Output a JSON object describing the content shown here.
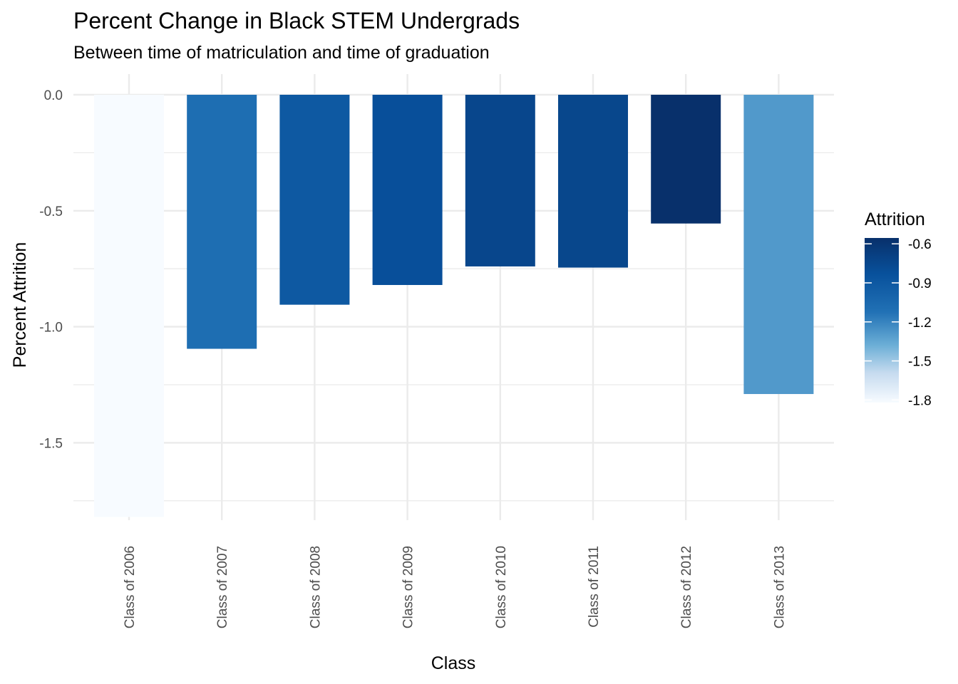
{
  "chart_data": {
    "type": "bar",
    "title": "Percent Change in Black STEM Undergrads",
    "subtitle": "Between time of matriculation and time of graduation",
    "xlabel": "Class",
    "ylabel": "Percent Attrition",
    "categories": [
      "Class of 2006",
      "Class of 2007",
      "Class of 2008",
      "Class of 2009",
      "Class of 2010",
      "Class of 2011",
      "Class of 2012",
      "Class of 2013"
    ],
    "values": [
      -1.82,
      -1.095,
      -0.905,
      -0.82,
      -0.74,
      -0.745,
      -0.555,
      -1.29
    ],
    "ylim": [
      -1.82,
      0
    ],
    "yticks": [
      0.0,
      -0.5,
      -1.0,
      -1.5
    ],
    "ytick_labels": [
      "0.0",
      "-0.5",
      "-1.0",
      "-1.5"
    ],
    "grid": true,
    "legend": {
      "title": "Attrition",
      "position": "right",
      "type": "continuous",
      "ticks": [
        -0.6,
        -0.9,
        -1.2,
        -1.5,
        -1.8
      ],
      "tick_labels": [
        "-0.6",
        "-0.9",
        "-1.2",
        "-1.5",
        "-1.8"
      ],
      "range": [
        -1.82,
        -0.555
      ],
      "color_high": "#08306b",
      "color_low": "#f7fbff"
    }
  }
}
